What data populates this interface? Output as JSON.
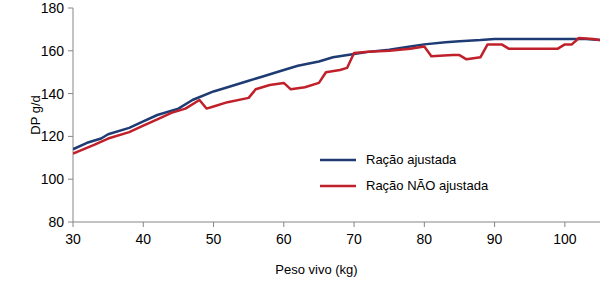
{
  "chart_data": {
    "type": "line",
    "x_label": "Peso vivo (kg)",
    "y_label": "DP g/d",
    "xlim": [
      30,
      105
    ],
    "xticks": [
      30,
      40,
      50,
      60,
      70,
      80,
      90,
      100
    ],
    "ylim": [
      80,
      180
    ],
    "yticks": [
      80,
      100,
      120,
      140,
      160,
      180
    ],
    "grid": false,
    "legend": "lower right",
    "series": [
      {
        "name": "Ração ajustada",
        "color": "#1f3b73",
        "x": [
          30,
          32,
          34,
          35,
          38,
          40,
          42,
          45,
          47,
          50,
          52,
          55,
          57,
          60,
          62,
          65,
          67,
          70,
          72,
          75,
          78,
          80,
          83,
          85,
          88,
          90,
          95,
          100,
          103,
          105
        ],
        "values": [
          114,
          117,
          119,
          121,
          124,
          127,
          130,
          133,
          137,
          141,
          143,
          146,
          148,
          151,
          153,
          155,
          157,
          158.5,
          159.5,
          160.5,
          162,
          163,
          164,
          164.5,
          165,
          165.5,
          165.5,
          165.5,
          165.5,
          165
        ]
      },
      {
        "name": "Ração NÃO ajustada",
        "color": "#c0202a",
        "x": [
          30,
          33,
          35,
          38,
          40,
          42,
          44,
          46,
          48,
          49,
          50,
          52,
          55,
          56,
          58,
          60,
          61,
          63,
          65,
          66,
          68,
          69,
          70,
          72,
          75,
          78,
          80,
          81,
          84,
          85,
          86,
          88,
          89,
          91,
          92,
          94,
          99,
          100,
          101,
          102,
          104,
          105
        ],
        "values": [
          112,
          116,
          119,
          122,
          125,
          128,
          131,
          133,
          137,
          133,
          134,
          136,
          138,
          142,
          144,
          145,
          142,
          143,
          145,
          150,
          151,
          152,
          159,
          159.5,
          160,
          161,
          162,
          157.5,
          158,
          158,
          156,
          157,
          163,
          163,
          161,
          161,
          161,
          163,
          163,
          166,
          165.5,
          165
        ]
      }
    ]
  }
}
